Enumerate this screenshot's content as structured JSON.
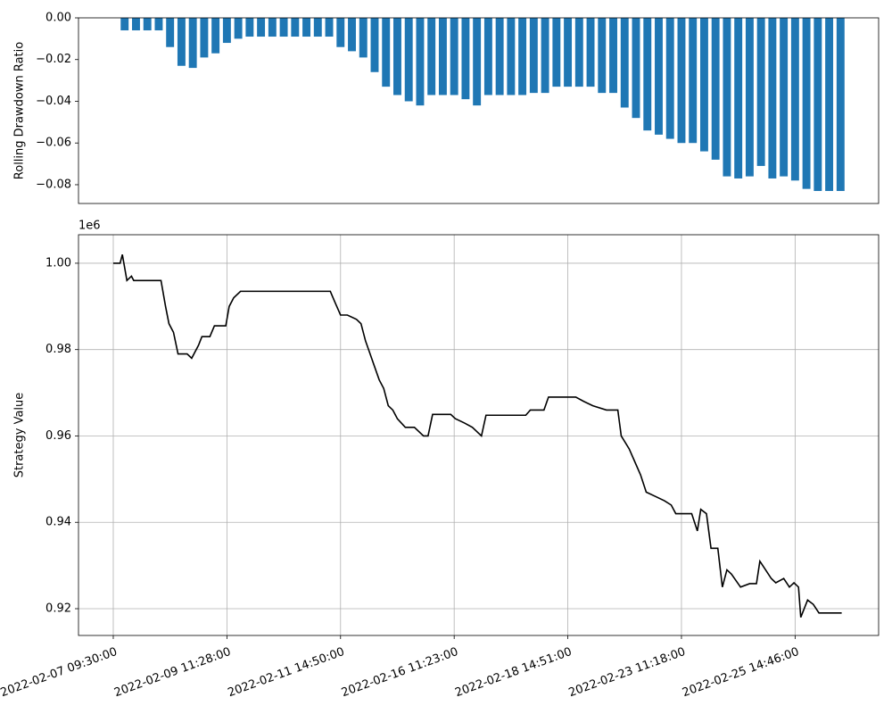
{
  "chart_data": [
    {
      "type": "bar",
      "ylabel": "Rolling Drawdown Ratio",
      "color": "#1f77b4",
      "grid": false,
      "xlim": [
        -30.6,
        673.5
      ],
      "ylim": [
        -0.089,
        0
      ],
      "yticks": [
        {
          "value": 0,
          "label": "0.00"
        },
        {
          "value": -0.02,
          "label": "−0.02"
        },
        {
          "value": -0.04,
          "label": "−0.04"
        },
        {
          "value": -0.06,
          "label": "−0.06"
        },
        {
          "value": -0.08,
          "label": "−0.08"
        }
      ],
      "x": [
        10,
        20,
        30,
        40,
        50,
        60,
        70,
        80,
        90,
        100,
        110,
        120,
        130,
        140,
        150,
        160,
        170,
        180,
        190,
        200,
        210,
        220,
        230,
        240,
        250,
        260,
        270,
        280,
        290,
        300,
        310,
        320,
        330,
        340,
        350,
        360,
        370,
        380,
        390,
        400,
        410,
        420,
        430,
        440,
        450,
        460,
        470,
        480,
        490,
        500,
        510,
        520,
        530,
        540,
        550,
        560,
        570,
        580,
        590,
        600,
        610,
        620,
        630,
        640
      ],
      "values": [
        -0.006,
        -0.006,
        -0.006,
        -0.006,
        -0.014,
        -0.023,
        -0.024,
        -0.019,
        -0.017,
        -0.012,
        -0.01,
        -0.009,
        -0.009,
        -0.009,
        -0.009,
        -0.009,
        -0.009,
        -0.009,
        -0.009,
        -0.014,
        -0.016,
        -0.019,
        -0.026,
        -0.033,
        -0.037,
        -0.04,
        -0.042,
        -0.037,
        -0.037,
        -0.037,
        -0.039,
        -0.042,
        -0.037,
        -0.037,
        -0.037,
        -0.037,
        -0.036,
        -0.036,
        -0.033,
        -0.033,
        -0.033,
        -0.033,
        -0.036,
        -0.036,
        -0.043,
        -0.048,
        -0.054,
        -0.056,
        -0.058,
        -0.06,
        -0.06,
        -0.064,
        -0.068,
        -0.076,
        -0.077,
        -0.076,
        -0.071,
        -0.077,
        -0.076,
        -0.078,
        -0.082,
        -0.083,
        -0.083,
        -0.083
      ]
    },
    {
      "type": "line",
      "ylabel": "Strategy Value",
      "y_offset_label": "1e6",
      "color": "#000000",
      "grid": true,
      "xlim": [
        -30.6,
        673.5
      ],
      "ylim": [
        0.9138,
        1.0066
      ],
      "xticks": [
        {
          "value": 0,
          "label": "2022-02-07 09:30:00"
        },
        {
          "value": 100,
          "label": "2022-02-09 11:28:00"
        },
        {
          "value": 200,
          "label": "2022-02-11 14:50:00"
        },
        {
          "value": 300,
          "label": "2022-02-16 11:23:00"
        },
        {
          "value": 400,
          "label": "2022-02-18 14:51:00"
        },
        {
          "value": 500,
          "label": "2022-02-23 11:18:00"
        },
        {
          "value": 600,
          "label": "2022-02-25 14:46:00"
        }
      ],
      "yticks": [
        0.92,
        0.94,
        0.96,
        0.98,
        {
          "value": 1,
          "label": "1.00"
        }
      ],
      "x": [
        0,
        6,
        8,
        12,
        16,
        18,
        42,
        46,
        49,
        53,
        57,
        65,
        69,
        75,
        78,
        85,
        89,
        99,
        102,
        106,
        112,
        191,
        195,
        200,
        206,
        214,
        218,
        222,
        226,
        230,
        234,
        238,
        242,
        246,
        250,
        257,
        265,
        273,
        277,
        281,
        297,
        301,
        309,
        316,
        324,
        328,
        363,
        367,
        379,
        383,
        407,
        414,
        422,
        434,
        444,
        447,
        454,
        459,
        464,
        469,
        477,
        485,
        491,
        495,
        501,
        509,
        514,
        517,
        522,
        526,
        532,
        536,
        540,
        544,
        552,
        560,
        566,
        569,
        574,
        579,
        583,
        590,
        595,
        599,
        603,
        605,
        611,
        616,
        621,
        641
      ],
      "values": [
        1.0,
        1.0,
        1.002,
        0.996,
        0.997,
        0.996,
        0.996,
        0.99,
        0.986,
        0.984,
        0.979,
        0.979,
        0.978,
        0.981,
        0.983,
        0.983,
        0.9855,
        0.9855,
        0.99,
        0.992,
        0.9935,
        0.9935,
        0.991,
        0.988,
        0.988,
        0.987,
        0.986,
        0.982,
        0.979,
        0.976,
        0.973,
        0.971,
        0.967,
        0.966,
        0.964,
        0.962,
        0.962,
        0.96,
        0.96,
        0.965,
        0.965,
        0.964,
        0.963,
        0.962,
        0.96,
        0.9648,
        0.9648,
        0.966,
        0.966,
        0.969,
        0.969,
        0.968,
        0.967,
        0.966,
        0.966,
        0.96,
        0.957,
        0.954,
        0.951,
        0.947,
        0.946,
        0.945,
        0.944,
        0.942,
        0.942,
        0.942,
        0.938,
        0.943,
        0.942,
        0.934,
        0.934,
        0.925,
        0.929,
        0.928,
        0.925,
        0.9258,
        0.9258,
        0.931,
        0.929,
        0.927,
        0.926,
        0.927,
        0.925,
        0.926,
        0.925,
        0.918,
        0.922,
        0.921,
        0.919,
        0.919
      ]
    }
  ]
}
